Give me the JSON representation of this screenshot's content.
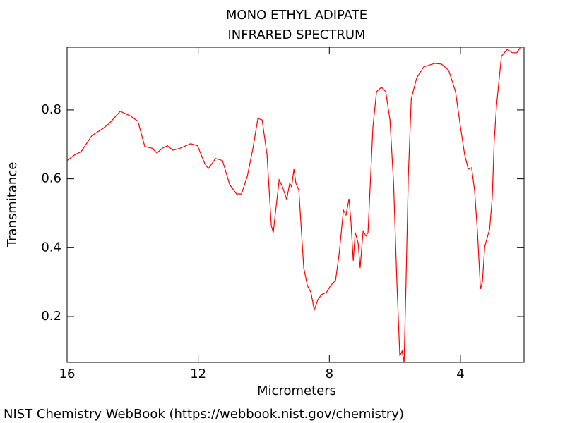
{
  "chart_data": {
    "type": "line",
    "title": "MONO ETHYL ADIPATE",
    "subtitle": "INFRARED SPECTRUM",
    "x_label": "Micrometers",
    "y_label": "Transmitance",
    "source": "NIST Chemistry WebBook (https://webbook.nist.gov/chemistry)",
    "color": "#ff0000",
    "xlim": [
      16,
      2.06
    ],
    "ylim": [
      0.067,
      0.982
    ],
    "xticks": [
      16,
      12,
      8,
      4
    ],
    "yticks": [
      0.2,
      0.4,
      0.6,
      0.8
    ],
    "grid": false,
    "x": [
      16.0,
      15.78,
      15.57,
      15.24,
      14.92,
      14.71,
      14.38,
      14.06,
      13.84,
      13.63,
      13.41,
      13.26,
      13.09,
      12.94,
      12.77,
      12.55,
      12.23,
      12.02,
      11.8,
      11.69,
      11.47,
      11.26,
      11.04,
      10.83,
      10.68,
      10.5,
      10.33,
      10.18,
      10.05,
      9.9,
      9.77,
      9.71,
      9.64,
      9.53,
      9.43,
      9.3,
      9.21,
      9.15,
      9.08,
      9.02,
      8.93,
      8.78,
      8.67,
      8.56,
      8.46,
      8.35,
      8.24,
      8.09,
      7.96,
      7.81,
      7.7,
      7.57,
      7.49,
      7.4,
      7.34,
      7.27,
      7.21,
      7.12,
      7.06,
      6.97,
      6.88,
      6.82,
      6.73,
      6.67,
      6.56,
      6.41,
      6.28,
      6.15,
      6.04,
      5.94,
      5.85,
      5.78,
      5.72,
      5.66,
      5.59,
      5.5,
      5.33,
      5.12,
      4.79,
      4.58,
      4.36,
      4.15,
      4.0,
      3.87,
      3.76,
      3.66,
      3.57,
      3.48,
      3.39,
      3.33,
      3.26,
      3.11,
      3.03,
      2.97,
      2.9,
      2.75,
      2.57,
      2.42,
      2.28,
      2.17,
      2.06
    ],
    "values": [
      0.653,
      0.669,
      0.679,
      0.726,
      0.745,
      0.761,
      0.796,
      0.782,
      0.767,
      0.694,
      0.689,
      0.675,
      0.689,
      0.696,
      0.683,
      0.689,
      0.702,
      0.696,
      0.644,
      0.63,
      0.659,
      0.653,
      0.583,
      0.556,
      0.556,
      0.608,
      0.689,
      0.775,
      0.771,
      0.669,
      0.464,
      0.444,
      0.505,
      0.597,
      0.577,
      0.54,
      0.587,
      0.577,
      0.628,
      0.587,
      0.567,
      0.341,
      0.29,
      0.27,
      0.219,
      0.249,
      0.264,
      0.27,
      0.29,
      0.305,
      0.382,
      0.509,
      0.495,
      0.542,
      0.475,
      0.362,
      0.444,
      0.413,
      0.341,
      0.448,
      0.434,
      0.444,
      0.628,
      0.751,
      0.853,
      0.866,
      0.853,
      0.771,
      0.587,
      0.301,
      0.086,
      0.1,
      0.067,
      0.301,
      0.608,
      0.833,
      0.894,
      0.925,
      0.935,
      0.933,
      0.915,
      0.853,
      0.751,
      0.669,
      0.628,
      0.632,
      0.567,
      0.444,
      0.28,
      0.301,
      0.403,
      0.454,
      0.546,
      0.71,
      0.812,
      0.956,
      0.976,
      0.966,
      0.966,
      0.982,
      0.982
    ]
  }
}
